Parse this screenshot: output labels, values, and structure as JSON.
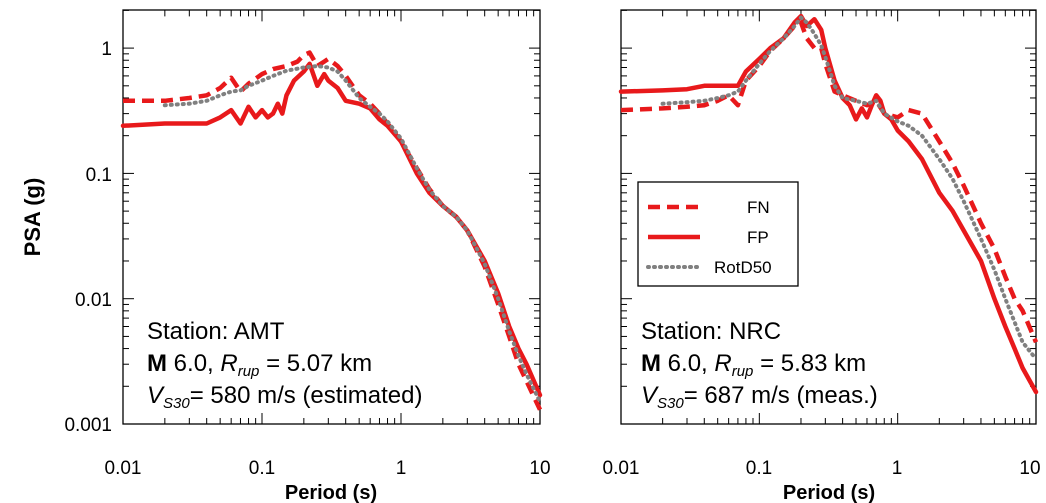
{
  "chart_data": [
    {
      "type": "line",
      "x_scale": "log",
      "y_scale": "log",
      "xlim": [
        0.01,
        10
      ],
      "ylim": [
        0.001,
        2
      ],
      "xlabel": "Period (s)",
      "ylabel": "PSA (g)",
      "x_ticks": [
        "0.01",
        "0.1",
        "1",
        "10"
      ],
      "y_ticks": [
        "0.001",
        "0.01",
        "0.1",
        "1"
      ],
      "annotation": {
        "line1_prefix": "Station:",
        "line1_value": "AMT",
        "line2_mag": "M",
        "line2_mag_value": "6.0,",
        "line2_r": "R",
        "line2_r_sub": "rup",
        "line2_r_value": "= 5.07 km",
        "line3_v": "V",
        "line3_v_sub": "S30",
        "line3_value": "= 580 m/s (estimated)"
      },
      "series": [
        {
          "name": "FN",
          "style": "dashed",
          "color": "#e8191b",
          "x": [
            0.01,
            0.02,
            0.03,
            0.04,
            0.05,
            0.06,
            0.07,
            0.08,
            0.1,
            0.12,
            0.15,
            0.18,
            0.2,
            0.22,
            0.25,
            0.28,
            0.3,
            0.35,
            0.4,
            0.5,
            0.6,
            0.7,
            0.8,
            1,
            1.3,
            1.6,
            2,
            2.5,
            3,
            4,
            5,
            6,
            7,
            8,
            10
          ],
          "y": [
            0.38,
            0.38,
            0.4,
            0.42,
            0.48,
            0.58,
            0.45,
            0.52,
            0.62,
            0.68,
            0.72,
            0.78,
            0.88,
            0.92,
            0.72,
            0.78,
            0.82,
            0.72,
            0.6,
            0.42,
            0.36,
            0.3,
            0.25,
            0.18,
            0.11,
            0.075,
            0.055,
            0.045,
            0.035,
            0.018,
            0.009,
            0.005,
            0.003,
            0.0022,
            0.0013
          ]
        },
        {
          "name": "FP",
          "style": "solid",
          "color": "#e8191b",
          "x": [
            0.01,
            0.02,
            0.03,
            0.04,
            0.05,
            0.06,
            0.07,
            0.08,
            0.09,
            0.1,
            0.11,
            0.12,
            0.13,
            0.14,
            0.15,
            0.17,
            0.2,
            0.22,
            0.25,
            0.28,
            0.3,
            0.35,
            0.4,
            0.5,
            0.6,
            0.7,
            0.8,
            1,
            1.3,
            1.6,
            2,
            2.5,
            3,
            4,
            5,
            6,
            7,
            8,
            10
          ],
          "y": [
            0.24,
            0.25,
            0.25,
            0.25,
            0.28,
            0.32,
            0.25,
            0.34,
            0.28,
            0.32,
            0.28,
            0.3,
            0.36,
            0.3,
            0.42,
            0.55,
            0.65,
            0.75,
            0.5,
            0.62,
            0.55,
            0.48,
            0.38,
            0.36,
            0.33,
            0.27,
            0.24,
            0.18,
            0.1,
            0.07,
            0.055,
            0.045,
            0.035,
            0.02,
            0.011,
            0.006,
            0.004,
            0.003,
            0.0017
          ]
        },
        {
          "name": "RotD50",
          "style": "dotted",
          "color": "#808080",
          "x": [
            0.02,
            0.03,
            0.04,
            0.05,
            0.06,
            0.07,
            0.08,
            0.1,
            0.12,
            0.15,
            0.2,
            0.25,
            0.3,
            0.35,
            0.4,
            0.5,
            0.6,
            0.7,
            0.8,
            1,
            1.3,
            1.6,
            2,
            2.5,
            3,
            4,
            5,
            6,
            7,
            8,
            10
          ],
          "y": [
            0.35,
            0.36,
            0.38,
            0.42,
            0.45,
            0.46,
            0.5,
            0.55,
            0.6,
            0.66,
            0.7,
            0.72,
            0.7,
            0.65,
            0.55,
            0.4,
            0.34,
            0.3,
            0.26,
            0.19,
            0.11,
            0.074,
            0.055,
            0.045,
            0.035,
            0.019,
            0.01,
            0.0055,
            0.0035,
            0.0025,
            0.0015
          ]
        }
      ]
    },
    {
      "type": "line",
      "x_scale": "log",
      "y_scale": "log",
      "xlim": [
        0.01,
        10
      ],
      "ylim": [
        0.001,
        2
      ],
      "xlabel": "Period (s)",
      "x_ticks": [
        "0.01",
        "0.1",
        "1",
        "10"
      ],
      "legend": {
        "position": "center-left",
        "entries": [
          "FN",
          "FP",
          "RotD50"
        ]
      },
      "annotation": {
        "line1_prefix": "Station:",
        "line1_value": "NRC",
        "line2_mag": "M",
        "line2_mag_value": "6.0,",
        "line2_r": "R",
        "line2_r_sub": "rup",
        "line2_r_value": "= 5.83 km",
        "line3_v": "V",
        "line3_v_sub": "S30",
        "line3_value": "= 687 m/s (meas.)"
      },
      "series": [
        {
          "name": "FN",
          "style": "dashed",
          "color": "#e8191b",
          "x": [
            0.01,
            0.02,
            0.03,
            0.04,
            0.05,
            0.06,
            0.07,
            0.08,
            0.1,
            0.12,
            0.15,
            0.18,
            0.2,
            0.22,
            0.25,
            0.28,
            0.3,
            0.35,
            0.4,
            0.5,
            0.6,
            0.7,
            0.8,
            1,
            1.2,
            1.5,
            2,
            2.5,
            3,
            4,
            5,
            6,
            7,
            8,
            10
          ],
          "y": [
            0.32,
            0.33,
            0.34,
            0.35,
            0.38,
            0.42,
            0.35,
            0.55,
            0.72,
            0.95,
            1.2,
            1.5,
            1.6,
            1.2,
            1.0,
            1.0,
            0.75,
            0.45,
            0.42,
            0.38,
            0.35,
            0.38,
            0.3,
            0.28,
            0.32,
            0.3,
            0.18,
            0.12,
            0.08,
            0.04,
            0.025,
            0.015,
            0.01,
            0.008,
            0.0045
          ]
        },
        {
          "name": "FP",
          "style": "solid",
          "color": "#e8191b",
          "x": [
            0.01,
            0.02,
            0.03,
            0.04,
            0.05,
            0.06,
            0.07,
            0.08,
            0.1,
            0.12,
            0.15,
            0.18,
            0.2,
            0.22,
            0.25,
            0.28,
            0.3,
            0.35,
            0.4,
            0.45,
            0.5,
            0.55,
            0.6,
            0.65,
            0.7,
            0.75,
            0.8,
            0.9,
            1,
            1.2,
            1.5,
            2,
            2.5,
            3,
            4,
            5,
            6,
            7,
            8,
            10
          ],
          "y": [
            0.45,
            0.46,
            0.47,
            0.5,
            0.5,
            0.5,
            0.5,
            0.65,
            0.82,
            1.0,
            1.2,
            1.6,
            1.8,
            1.5,
            1.7,
            1.4,
            1.0,
            0.55,
            0.4,
            0.35,
            0.27,
            0.33,
            0.28,
            0.35,
            0.42,
            0.38,
            0.3,
            0.27,
            0.22,
            0.18,
            0.13,
            0.07,
            0.05,
            0.035,
            0.02,
            0.01,
            0.006,
            0.004,
            0.0028,
            0.0018
          ]
        },
        {
          "name": "RotD50",
          "style": "dotted",
          "color": "#808080",
          "x": [
            0.02,
            0.03,
            0.04,
            0.05,
            0.06,
            0.07,
            0.08,
            0.1,
            0.12,
            0.15,
            0.18,
            0.2,
            0.22,
            0.25,
            0.28,
            0.3,
            0.35,
            0.4,
            0.5,
            0.6,
            0.7,
            0.8,
            1,
            1.2,
            1.5,
            2,
            2.5,
            3,
            4,
            5,
            6,
            7,
            8,
            10
          ],
          "y": [
            0.36,
            0.37,
            0.38,
            0.4,
            0.42,
            0.45,
            0.55,
            0.75,
            0.95,
            1.2,
            1.5,
            1.75,
            1.6,
            1.3,
            1.05,
            0.85,
            0.5,
            0.4,
            0.38,
            0.36,
            0.38,
            0.3,
            0.26,
            0.24,
            0.2,
            0.13,
            0.09,
            0.06,
            0.03,
            0.017,
            0.01,
            0.0065,
            0.0045,
            0.0033
          ]
        }
      ]
    }
  ]
}
